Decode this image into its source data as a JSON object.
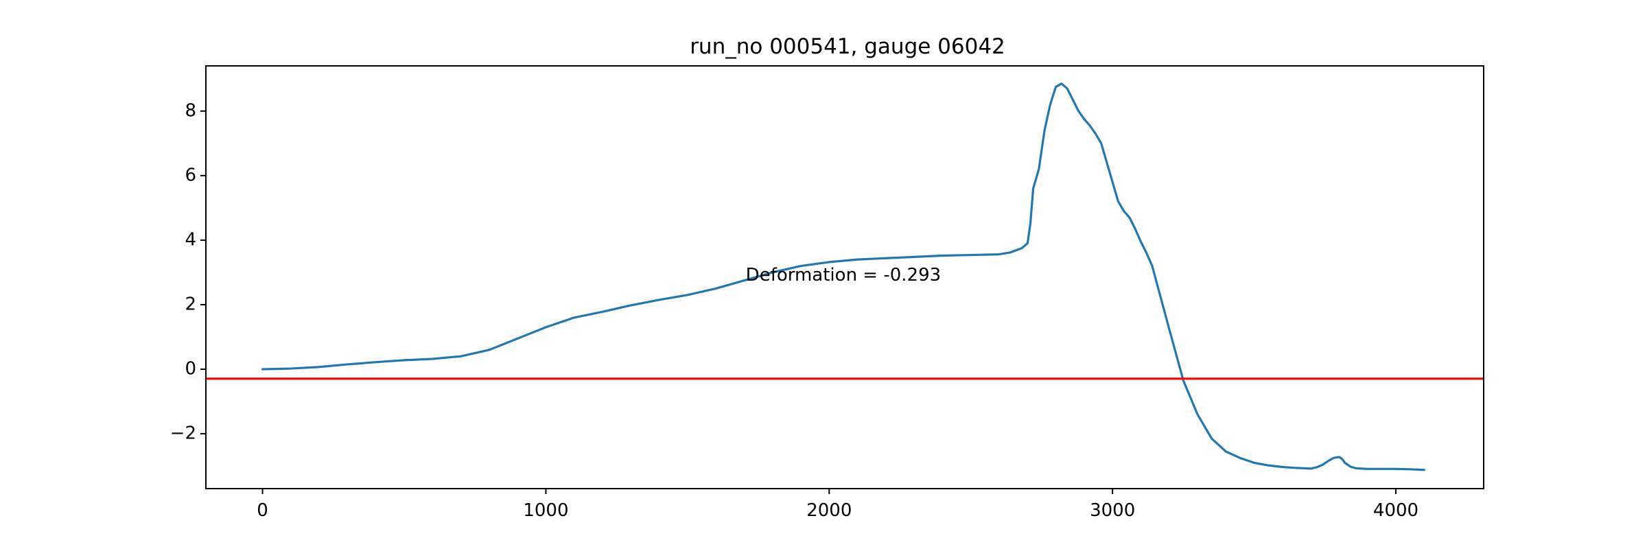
{
  "chart_data": {
    "type": "line",
    "title": "run_no 000541, gauge 06042",
    "xlabel": "",
    "ylabel": "",
    "xlim": [
      -200,
      4310
    ],
    "ylim": [
      -3.7,
      9.4
    ],
    "xticks": [
      0,
      1000,
      2000,
      3000,
      4000
    ],
    "xtick_labels": [
      "0",
      "1000",
      "2000",
      "3000",
      "4000"
    ],
    "yticks": [
      -2,
      0,
      2,
      4,
      6,
      8
    ],
    "ytick_labels": [
      "−2",
      "0",
      "2",
      "4",
      "6",
      "8"
    ],
    "grid": false,
    "series": [
      {
        "color": "#1f77b4",
        "x": [
          0,
          100,
          200,
          300,
          400,
          500,
          600,
          700,
          800,
          900,
          1000,
          1100,
          1200,
          1300,
          1400,
          1500,
          1600,
          1700,
          1800,
          1900,
          2000,
          2100,
          2200,
          2300,
          2400,
          2500,
          2600,
          2640,
          2680,
          2700,
          2710,
          2720,
          2740,
          2760,
          2780,
          2800,
          2820,
          2840,
          2860,
          2880,
          2900,
          2920,
          2940,
          2960,
          2980,
          3000,
          3020,
          3040,
          3060,
          3080,
          3100,
          3120,
          3140,
          3160,
          3180,
          3200,
          3250,
          3300,
          3350,
          3400,
          3450,
          3500,
          3550,
          3600,
          3650,
          3700,
          3720,
          3740,
          3760,
          3780,
          3800,
          3810,
          3820,
          3840,
          3860,
          3880,
          3900,
          3950,
          4000,
          4050,
          4100
        ],
        "y": [
          0.0,
          0.02,
          0.07,
          0.15,
          0.22,
          0.28,
          0.32,
          0.4,
          0.6,
          0.95,
          1.3,
          1.6,
          1.78,
          1.98,
          2.15,
          2.3,
          2.5,
          2.75,
          3.0,
          3.2,
          3.32,
          3.4,
          3.44,
          3.48,
          3.52,
          3.54,
          3.56,
          3.62,
          3.75,
          3.9,
          4.5,
          5.6,
          6.2,
          7.4,
          8.2,
          8.75,
          8.85,
          8.7,
          8.35,
          8.0,
          7.75,
          7.55,
          7.3,
          7.0,
          6.4,
          5.8,
          5.2,
          4.9,
          4.7,
          4.35,
          3.95,
          3.6,
          3.2,
          2.55,
          1.9,
          1.25,
          -0.35,
          -1.4,
          -2.15,
          -2.55,
          -2.75,
          -2.9,
          -2.98,
          -3.03,
          -3.06,
          -3.08,
          -3.04,
          -2.97,
          -2.85,
          -2.75,
          -2.72,
          -2.78,
          -2.9,
          -3.02,
          -3.07,
          -3.08,
          -3.09,
          -3.09,
          -3.09,
          -3.1,
          -3.12
        ]
      }
    ],
    "hline": {
      "y": -0.293,
      "color": "#ff0000"
    },
    "annotation": {
      "text": "Deformation = -0.293",
      "x": 2050,
      "y": 2.9
    }
  }
}
